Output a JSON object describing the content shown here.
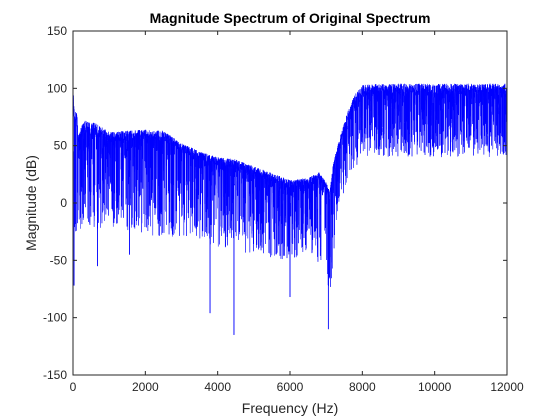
{
  "chart_data": {
    "type": "line",
    "title": "Magnitude Spectrum of Original Spectrum",
    "xlabel": "Frequency (Hz)",
    "ylabel": "Magnitude (dB)",
    "xlim": [
      0,
      12000
    ],
    "ylim": [
      -150,
      150
    ],
    "xticks": [
      0,
      2000,
      4000,
      6000,
      8000,
      10000,
      12000
    ],
    "xtick_labels": [
      "0",
      "2000",
      "4000",
      "6000",
      "8000",
      "10000",
      "12000"
    ],
    "yticks": [
      -150,
      -100,
      -50,
      0,
      50,
      100,
      150
    ],
    "ytick_labels": [
      "-150",
      "-100",
      "-50",
      "0",
      "50",
      "100",
      "150"
    ],
    "grid": false,
    "box": true,
    "series": [
      {
        "color": "#0000ff",
        "upper_envelope": {
          "x": [
            0,
            50,
            100,
            150,
            300,
            600,
            1000,
            1500,
            2000,
            2500,
            3000,
            3500,
            4000,
            4500,
            5000,
            5500,
            6000,
            6500,
            6800,
            7000,
            7100,
            7200,
            7400,
            7600,
            7800,
            8000,
            8500,
            9000,
            10000,
            11000,
            12000
          ],
          "y": [
            105,
            75,
            85,
            60,
            72,
            70,
            62,
            63,
            64,
            63,
            52,
            45,
            40,
            38,
            32,
            26,
            20,
            22,
            27,
            18,
            10,
            35,
            60,
            80,
            95,
            103,
            104,
            104,
            104,
            104,
            104
          ]
        },
        "median_trace": {
          "x": [
            0,
            50,
            100,
            300,
            600,
            1000,
            1500,
            2000,
            2500,
            3000,
            3500,
            4000,
            4500,
            5000,
            5500,
            6000,
            6500,
            6800,
            7000,
            7100,
            7200,
            7400,
            7600,
            7800,
            8000,
            8500,
            9000,
            10000,
            11000,
            12000
          ],
          "y": [
            60,
            35,
            40,
            38,
            36,
            35,
            37,
            40,
            38,
            30,
            24,
            20,
            16,
            10,
            4,
            0,
            5,
            8,
            -2,
            -10,
            12,
            40,
            62,
            72,
            78,
            78,
            78,
            78,
            78,
            78
          ]
        },
        "lower_envelope": {
          "x": [
            0,
            300,
            1000,
            2000,
            3000,
            4000,
            5000,
            6000,
            6500,
            7000,
            7100,
            7300,
            7600,
            8000,
            9000,
            10000,
            11000,
            12000
          ],
          "y": [
            -30,
            -20,
            -25,
            -28,
            -30,
            -38,
            -45,
            -50,
            -42,
            -60,
            -85,
            -10,
            20,
            40,
            40,
            40,
            40,
            40
          ]
        },
        "spikes": [
          {
            "x": 30,
            "y": -72
          },
          {
            "x": 680,
            "y": -55
          },
          {
            "x": 1560,
            "y": -45
          },
          {
            "x": 3790,
            "y": -96
          },
          {
            "x": 4450,
            "y": -115
          },
          {
            "x": 6000,
            "y": -82
          },
          {
            "x": 7060,
            "y": -110
          }
        ]
      }
    ]
  }
}
